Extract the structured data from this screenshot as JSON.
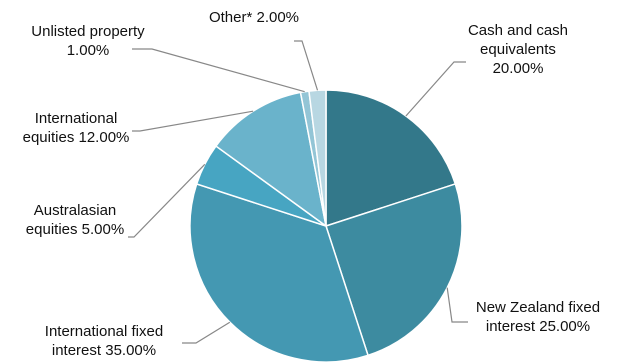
{
  "chart_data": {
    "type": "pie",
    "start_angle_deg": 0,
    "direction": "clockwise",
    "slices": [
      {
        "label_lines": [
          "Cash and cash",
          "equivalents",
          "20.00%"
        ],
        "name": "Cash and cash equivalents",
        "value": 20.0,
        "color": "#33788a"
      },
      {
        "label_lines": [
          "New Zealand fixed",
          "interest 25.00%"
        ],
        "name": "New Zealand fixed interest",
        "value": 25.0,
        "color": "#3d8ba0"
      },
      {
        "label_lines": [
          "International fixed",
          "interest 35.00%"
        ],
        "name": "International fixed interest",
        "value": 35.0,
        "color": "#4498b2"
      },
      {
        "label_lines": [
          "Australasian",
          "equities 5.00%"
        ],
        "name": "Australasian equities",
        "value": 5.0,
        "color": "#47a5c2"
      },
      {
        "label_lines": [
          "International",
          "equities 12.00%"
        ],
        "name": "International equities",
        "value": 12.0,
        "color": "#6ab3cb"
      },
      {
        "label_lines": [
          "Unlisted property",
          "1.00%"
        ],
        "name": "Unlisted property",
        "value": 1.0,
        "color": "#93c5d6"
      },
      {
        "label_lines": [
          "Other* 2.00%"
        ],
        "name": "Other*",
        "value": 2.0,
        "color": "#b8d7e2"
      }
    ]
  }
}
